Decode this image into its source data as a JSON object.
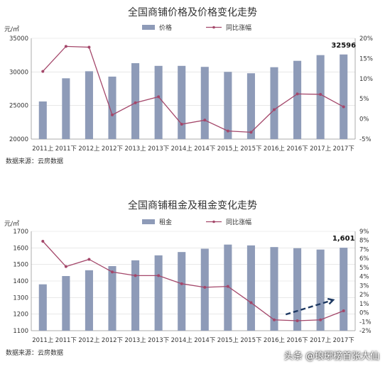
{
  "colors": {
    "bar": "#8e9bb8",
    "line": "#a4476a",
    "grid": "#d9d9d9",
    "text": "#333333",
    "arrow": "#1f3a63"
  },
  "chart_data": [
    {
      "type": "bar",
      "title": "全国商铺价格及价格变化走势",
      "ylabel": "元/㎡",
      "source": "数据来源：云房数据",
      "legend": [
        "价格",
        "同比涨幅"
      ],
      "categories": [
        "2011上",
        "2011下",
        "2012上",
        "2012下",
        "2013上",
        "2013下",
        "2014上",
        "2014下",
        "2015上",
        "2015下",
        "2016上",
        "2016下",
        "2017上",
        "2017下"
      ],
      "series": [
        {
          "name": "价格",
          "type": "bar",
          "axis": "left",
          "values": [
            25600,
            29050,
            30100,
            29300,
            31300,
            30900,
            30900,
            30750,
            30000,
            29800,
            30700,
            31650,
            32500,
            32596
          ]
        },
        {
          "name": "同比涨幅",
          "type": "line",
          "axis": "right",
          "values": [
            11.8,
            18.0,
            17.8,
            1.0,
            4.0,
            5.5,
            -1.3,
            -0.3,
            -3.0,
            -3.3,
            2.3,
            6.2,
            6.1,
            3.0
          ]
        }
      ],
      "y_left": {
        "min": 20000,
        "max": 35000,
        "ticks": [
          "20000",
          "25000",
          "30000",
          "35000"
        ]
      },
      "y_right": {
        "min": -5,
        "max": 20,
        "ticks": [
          "-5%",
          "0%",
          "5%",
          "10%",
          "15%",
          "20%"
        ]
      },
      "callout": "32596"
    },
    {
      "type": "bar",
      "title": "全国商铺租金及租金变化走势",
      "ylabel": "元/㎡",
      "source": "数据来源：云房数据",
      "legend": [
        "租金",
        "同比涨幅"
      ],
      "categories": [
        "2011上",
        "2011下",
        "2012上",
        "2012下",
        "2013上",
        "2013下",
        "2014上",
        "2014下",
        "2015上",
        "2015下",
        "2016上",
        "2016下",
        "2017上",
        "2017下"
      ],
      "series": [
        {
          "name": "租金",
          "type": "bar",
          "axis": "left",
          "values": [
            1380,
            1430,
            1465,
            1490,
            1525,
            1555,
            1575,
            1595,
            1620,
            1615,
            1605,
            1598,
            1590,
            1601
          ]
        },
        {
          "name": "同比涨幅",
          "type": "line",
          "axis": "right",
          "values": [
            7.9,
            5.1,
            5.9,
            4.5,
            4.1,
            4.1,
            3.2,
            2.8,
            2.9,
            1.1,
            -0.8,
            -0.9,
            -0.8,
            0.2
          ]
        }
      ],
      "y_left": {
        "min": 1100,
        "max": 1700,
        "ticks": [
          "1100",
          "1200",
          "1300",
          "1400",
          "1500",
          "1600",
          "1700"
        ]
      },
      "y_right": {
        "min": -2,
        "max": 9,
        "ticks": [
          "-2%",
          "-1%",
          "0%",
          "1%",
          "2%",
          "3%",
          "4%",
          "5%",
          "6%",
          "7%",
          "8%",
          "9%"
        ]
      },
      "callout": "1,601"
    }
  ],
  "watermark": "头条 @琅琊榜首张大仙"
}
